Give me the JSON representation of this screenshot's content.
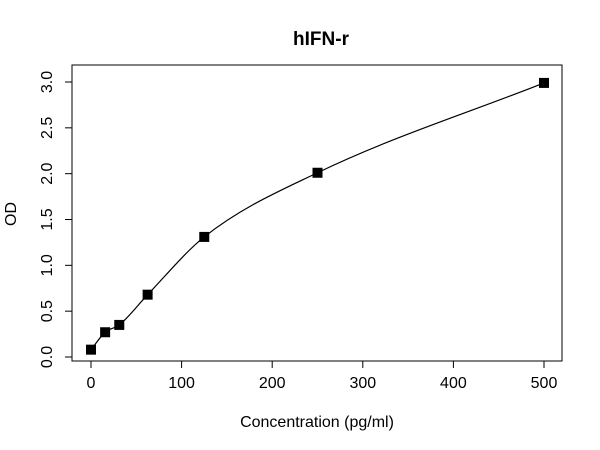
{
  "chart_data": {
    "type": "scatter",
    "title": "hIFN-r",
    "xlabel": "Concentration (pg/ml)",
    "ylabel": "OD",
    "xlim": [
      0,
      500
    ],
    "ylim": [
      0,
      3.0
    ],
    "xticks": [
      0,
      100,
      200,
      300,
      400,
      500
    ],
    "yticks": [
      0.0,
      0.5,
      1.0,
      1.5,
      2.0,
      2.5,
      3.0
    ],
    "xtick_labels": [
      "0",
      "100",
      "200",
      "300",
      "400",
      "500"
    ],
    "ytick_labels": [
      "0.0",
      "0.5",
      "1.0",
      "1.5",
      "2.0",
      "2.5",
      "3.0"
    ],
    "grid": false,
    "legend": "none",
    "points": [
      {
        "x": 0,
        "y": 0.08
      },
      {
        "x": 15.6,
        "y": 0.27
      },
      {
        "x": 31.2,
        "y": 0.35
      },
      {
        "x": 62.5,
        "y": 0.68
      },
      {
        "x": 125,
        "y": 1.31
      },
      {
        "x": 250,
        "y": 2.01
      },
      {
        "x": 500,
        "y": 2.99
      }
    ],
    "fit_curve": true,
    "marker": "square",
    "color": "#000000"
  }
}
